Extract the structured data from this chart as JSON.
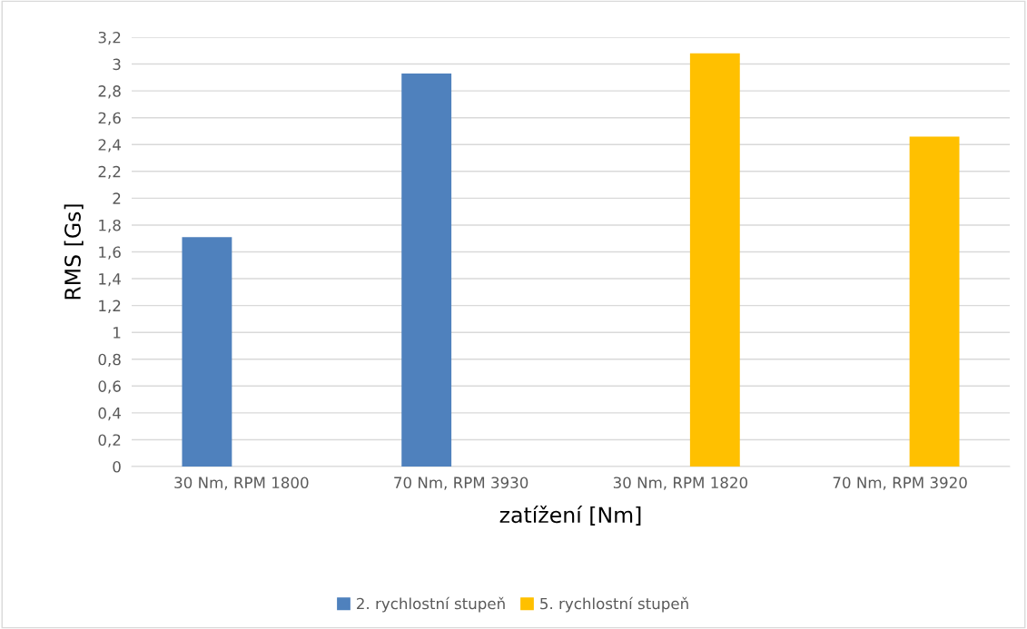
{
  "chart_data": {
    "type": "bar",
    "xlabel": "zatížení [Nm]",
    "ylabel": "RMS [Gs]",
    "categories": [
      "30 Nm, RPM 1800",
      "70 Nm, RPM 3930",
      "30 Nm, RPM 1820",
      "70 Nm, RPM 3920"
    ],
    "series": [
      {
        "name": "2. rychlostní stupeň",
        "color": "#4f81bd",
        "values": [
          1.71,
          2.93,
          null,
          null
        ]
      },
      {
        "name": "5. rychlostní stupeň",
        "color": "#ffc000",
        "values": [
          null,
          null,
          3.08,
          2.46
        ]
      }
    ],
    "ylim": [
      0,
      3.2
    ],
    "yticks": [
      0,
      {
        "value": 0.2,
        "label": "0,2"
      },
      {
        "value": 0.4,
        "label": "0,4"
      },
      {
        "value": 0.6,
        "label": "0,6"
      },
      {
        "value": 0.8,
        "label": "0,8"
      },
      1,
      {
        "value": 1.2,
        "label": "1,2"
      },
      {
        "value": 1.4,
        "label": "1,4"
      },
      {
        "value": 1.6,
        "label": "1,6"
      },
      {
        "value": 1.8,
        "label": "1,8"
      },
      2,
      {
        "value": 2.2,
        "label": "2,2"
      },
      {
        "value": 2.4,
        "label": "2,4"
      },
      {
        "value": 2.6,
        "label": "2,6"
      },
      {
        "value": 2.8,
        "label": "2,8"
      },
      3,
      {
        "value": 3.2,
        "label": "3,2"
      }
    ],
    "grid": "y",
    "legend": "bottom"
  }
}
